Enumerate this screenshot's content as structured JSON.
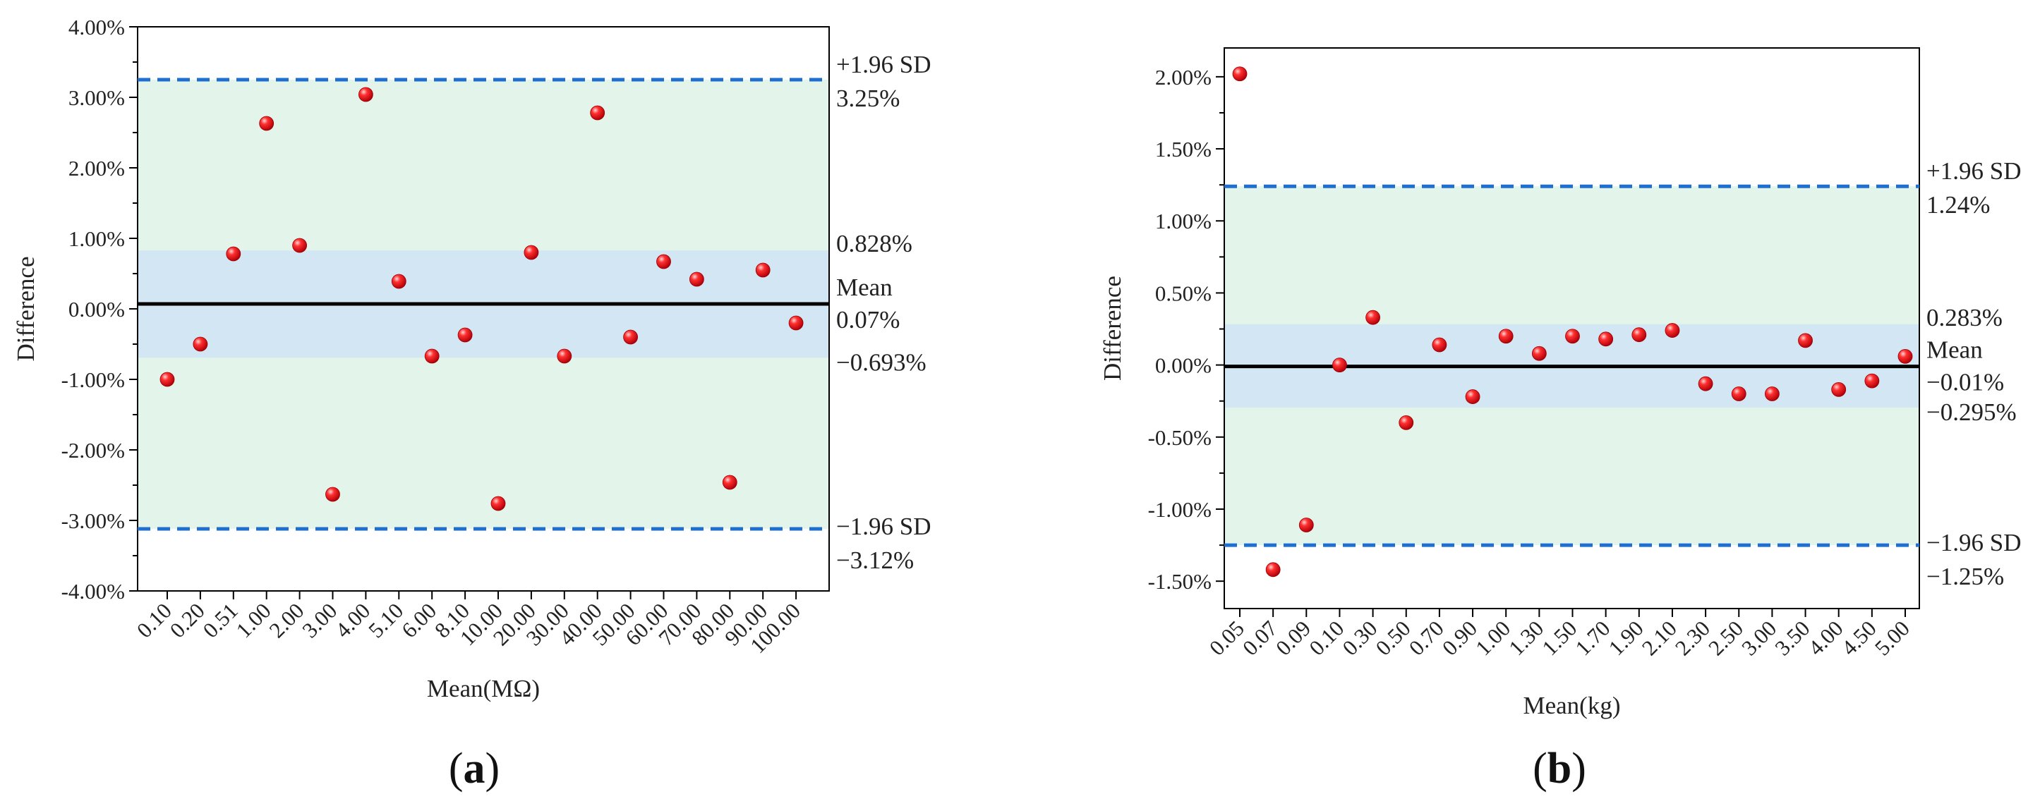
{
  "chart_data": [
    {
      "type": "scatter",
      "panel_label": "(a)",
      "panel_letter": "a",
      "xlabel": "Mean(MΩ)",
      "ylabel": "Difference",
      "categories": [
        "0.10",
        "0.20",
        "0.51",
        "1.00",
        "2.00",
        "3.00",
        "4.00",
        "5.10",
        "6.00",
        "8.10",
        "10.00",
        "20.00",
        "30.00",
        "40.00",
        "50.00",
        "60.00",
        "70.00",
        "80.00",
        "90.00",
        "100.00"
      ],
      "values": [
        -1.0,
        -0.5,
        0.78,
        2.63,
        0.9,
        -2.63,
        3.04,
        0.39,
        -0.67,
        -0.37,
        -2.76,
        0.8,
        -0.67,
        2.78,
        -0.4,
        0.67,
        0.42,
        -2.46,
        0.55,
        -0.2
      ],
      "ylim": [
        -4.0,
        4.0
      ],
      "yticks": [
        -4.0,
        -3.0,
        -2.0,
        -1.0,
        0.0,
        1.0,
        2.0,
        3.0,
        4.0
      ],
      "ytick_labels": [
        "-4.00%",
        "-3.00%",
        "-2.00%",
        "-1.00%",
        "0.00%",
        "1.00%",
        "2.00%",
        "3.00%",
        "4.00%"
      ],
      "mean": 0.07,
      "ci_upper": 0.828,
      "ci_lower": -0.693,
      "sd_upper": 3.25,
      "sd_lower": -3.12,
      "annotations": {
        "sd_upper_label": "+1.96 SD",
        "sd_upper_value": "3.25%",
        "ci_upper_value": "0.828%",
        "mean_label": "Mean",
        "mean_value": "0.07%",
        "ci_lower_value": "−0.693%",
        "sd_lower_label": "−1.96 SD",
        "sd_lower_value": "−3.12%"
      },
      "colors": {
        "outer_band": "#e3f5ea",
        "inner_band": "#d3e6f3",
        "sd_line": "#1f6fd1",
        "mean_line": "#000000",
        "point": "#e8141c"
      }
    },
    {
      "type": "scatter",
      "panel_label": "(b)",
      "panel_letter": "b",
      "xlabel": "Mean(kg)",
      "ylabel": "Difference",
      "categories": [
        "0.05",
        "0.07",
        "0.09",
        "0.10",
        "0.30",
        "0.50",
        "0.70",
        "0.90",
        "1.00",
        "1.30",
        "1.50",
        "1.70",
        "1.90",
        "2.10",
        "2.30",
        "2.50",
        "3.00",
        "3.50",
        "4.00",
        "4.50",
        "5.00"
      ],
      "values": [
        2.02,
        -1.42,
        -1.11,
        0.0,
        0.33,
        -0.4,
        0.14,
        -0.22,
        0.2,
        0.08,
        0.2,
        0.18,
        0.21,
        0.24,
        -0.13,
        -0.2,
        -0.2,
        0.17,
        -0.17,
        -0.11,
        0.06
      ],
      "ylim": [
        -1.69,
        2.2
      ],
      "yticks": [
        -1.5,
        -1.0,
        -0.5,
        0.0,
        0.5,
        1.0,
        1.5,
        2.0
      ],
      "ytick_labels": [
        "-1.50%",
        "-1.00%",
        "-0.50%",
        "0.00%",
        "0.50%",
        "1.00%",
        "1.50%",
        "2.00%"
      ],
      "mean": -0.01,
      "ci_upper": 0.283,
      "ci_lower": -0.295,
      "sd_upper": 1.24,
      "sd_lower": -1.25,
      "annotations": {
        "sd_upper_label": "+1.96 SD",
        "sd_upper_value": "1.24%",
        "ci_upper_value": "0.283%",
        "mean_label": "Mean",
        "mean_value": "−0.01%",
        "ci_lower_value": "−0.295%",
        "sd_lower_label": "−1.96 SD",
        "sd_lower_value": "−1.25%"
      },
      "colors": {
        "outer_band": "#e3f5ea",
        "inner_band": "#d3e6f3",
        "sd_line": "#1f6fd1",
        "mean_line": "#000000",
        "point": "#e8141c"
      }
    }
  ]
}
